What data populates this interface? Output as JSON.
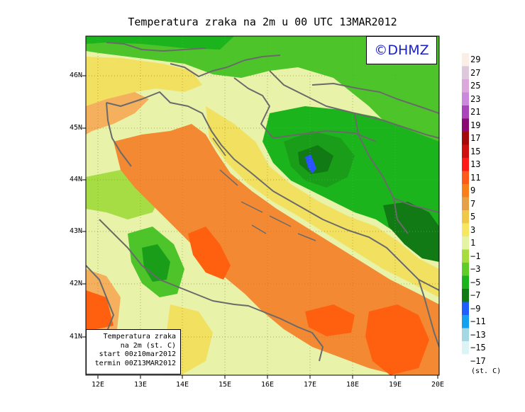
{
  "title": "Temperatura zraka na 2m u 00 UTC 13MAR2012",
  "copyright": "©DHMZ",
  "info_box": {
    "line1": "Temperatura zraka",
    "line2": "na 2m (st. C)",
    "line3": "start 00z10mar2012",
    "line4": "termin 00Z13MAR2012"
  },
  "lat_labels": [
    "46N",
    "45N",
    "44N",
    "43N",
    "42N",
    "41N"
  ],
  "lon_labels": [
    "12E",
    "13E",
    "14E",
    "15E",
    "16E",
    "17E",
    "18E",
    "19E",
    "20E"
  ],
  "legend": {
    "labels": [
      "29",
      "27",
      "25",
      "23",
      "21",
      "19",
      "17",
      "15",
      "13",
      "11",
      "9",
      "7",
      "5",
      "3",
      "1",
      "−1",
      "−3",
      "−5",
      "−7",
      "−9",
      "−11",
      "−13",
      "−15",
      "−17"
    ],
    "units": "(st. C)",
    "colors": [
      "#fbeee6",
      "#ddc8dc",
      "#dca8dc",
      "#cc88dc",
      "#aa44bb",
      "#8a0a74",
      "#a40a0a",
      "#cf0e0e",
      "#ff1a1a",
      "#ff5a1a",
      "#f97f1b",
      "#e6a04a",
      "#f0c848",
      "#f6e662",
      "#e4f4a4",
      "#a7dc3e",
      "#5fcc2a",
      "#1cb41c",
      "#127a14",
      "#1f5fff",
      "#12a0ef",
      "#a3d8e4",
      "#ddf4f7",
      "#ffffff"
    ]
  },
  "map_colors": {
    "orange": "#f38a33",
    "dark_orange": "#ff6010",
    "light_orange": "#f4b05c",
    "yellow": "#f2e060",
    "pale": "#e8f2a8",
    "light_green": "#a6dc44",
    "green": "#4cc42a",
    "dark_green": "#1a9e1a",
    "deep_green": "#127a14",
    "blue": "#2a52ff",
    "border": "#6a6a6a"
  }
}
